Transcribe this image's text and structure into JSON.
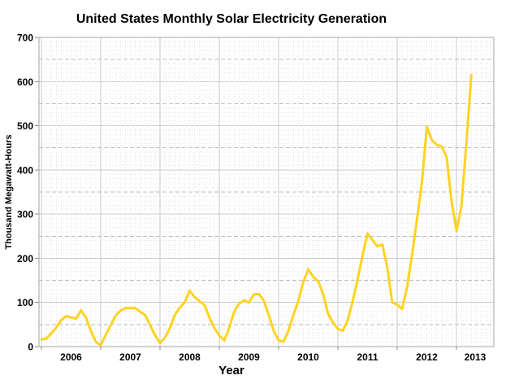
{
  "chart_data": {
    "type": "line",
    "title": "United States Monthly Solar Electricity Generation",
    "xlabel": "Year",
    "ylabel": "Thousand Megawatt-Hours",
    "ylim": [
      0,
      700
    ],
    "ytick_interval": 100,
    "yticks": [
      0,
      100,
      200,
      300,
      400,
      500,
      600,
      700
    ],
    "xticks": [
      "2006",
      "2007",
      "2008",
      "2009",
      "2010",
      "2011",
      "2012",
      "2013"
    ],
    "grid": {
      "major_horizontal": "solid every 100",
      "mid_horizontal": "dashed every 50",
      "minor_horizontal": "dotted every 10",
      "major_vertical": "solid at each January",
      "minor_vertical": "dotted at each month",
      "legend": "none"
    },
    "line_color": "#FFD320",
    "axis_color": "#a6a6a6",
    "series": [
      {
        "name": "Monthly solar electricity generation",
        "units": "thousand megawatt-hours",
        "start_year": 2006,
        "start_month": 1,
        "end_year": 2013,
        "end_month": 4,
        "values": [
          16,
          18,
          30,
          43,
          60,
          69,
          66,
          63,
          82,
          66,
          36,
          11,
          3,
          26,
          48,
          70,
          81,
          87,
          87,
          87,
          79,
          71,
          48,
          26,
          8,
          20,
          42,
          72,
          88,
          100,
          127,
          112,
          103,
          94,
          66,
          42,
          25,
          14,
          42,
          79,
          97,
          105,
          100,
          118,
          119,
          104,
          72,
          36,
          14,
          11,
          36,
          72,
          103,
          146,
          175,
          158,
          148,
          120,
          75,
          55,
          40,
          36,
          60,
          103,
          152,
          207,
          256,
          241,
          227,
          231,
          180,
          100,
          95,
          85,
          134,
          208,
          287,
          370,
          497,
          468,
          457,
          453,
          430,
          330,
          262,
          318,
          460,
          615
        ]
      }
    ]
  }
}
